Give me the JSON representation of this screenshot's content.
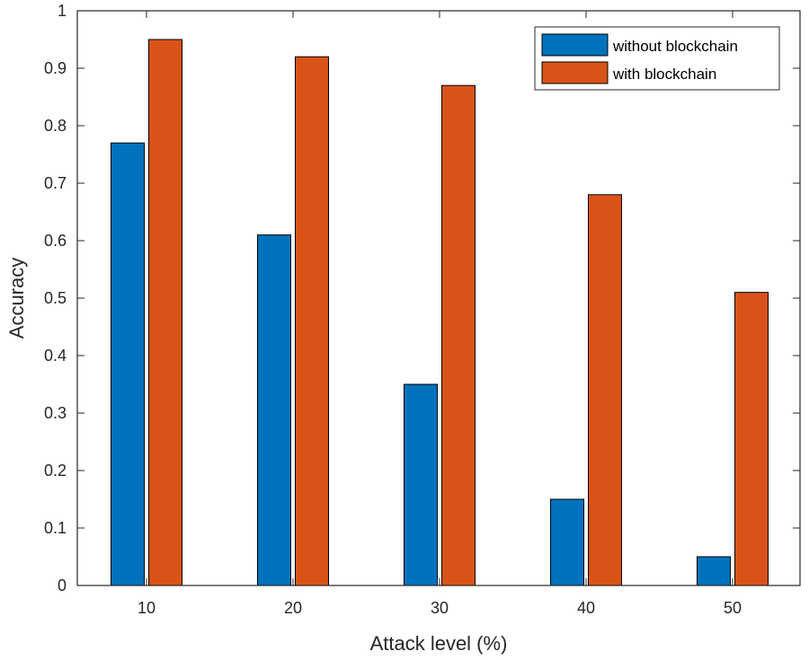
{
  "chart_data": {
    "type": "bar",
    "categories": [
      "10",
      "20",
      "30",
      "40",
      "50"
    ],
    "series": [
      {
        "name": "without blockchain",
        "values": [
          0.77,
          0.61,
          0.35,
          0.15,
          0.05
        ],
        "color": "#0072BD"
      },
      {
        "name": "with blockchain",
        "values": [
          0.95,
          0.92,
          0.87,
          0.68,
          0.51
        ],
        "color": "#D95319"
      }
    ],
    "xlabel": "Attack level (%)",
    "ylabel": "Accuracy",
    "ylim": [
      0,
      1
    ],
    "yticks": [
      "0",
      "0.1",
      "0.2",
      "0.3",
      "0.4",
      "0.5",
      "0.6",
      "0.7",
      "0.8",
      "0.9",
      "1"
    ],
    "grid": false,
    "legend_position": "top-right"
  }
}
